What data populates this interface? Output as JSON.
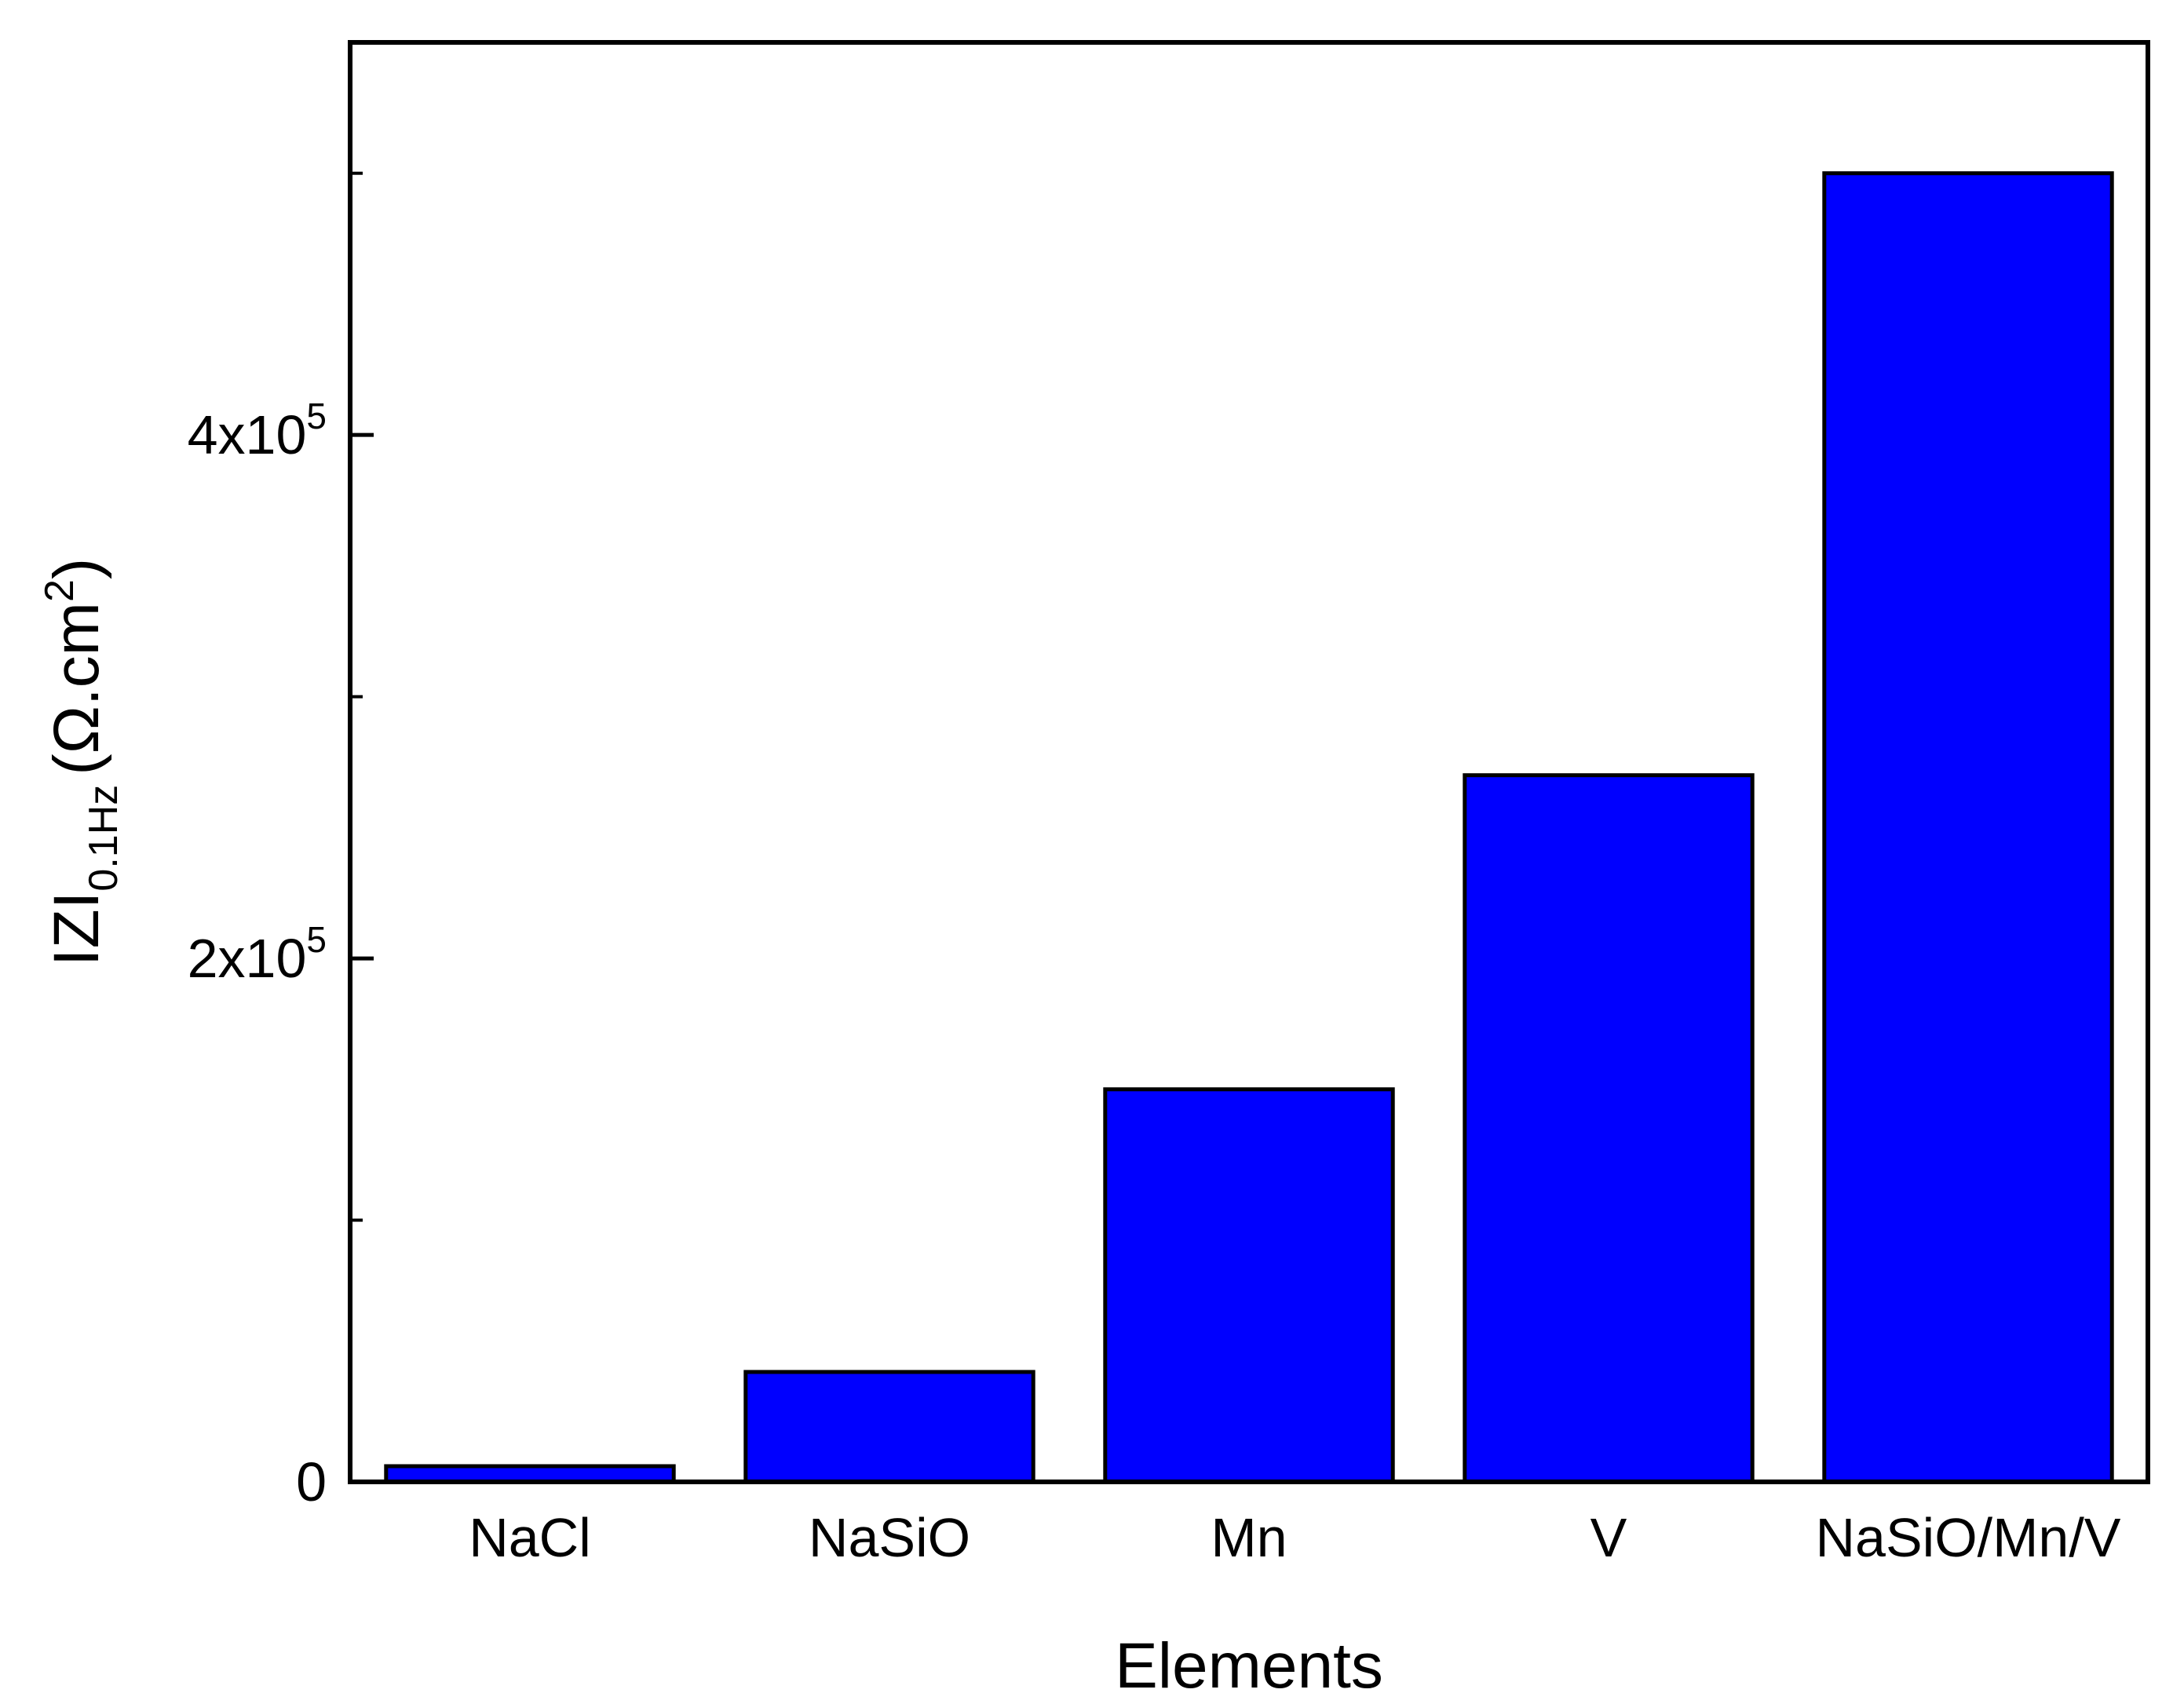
{
  "chart_data": {
    "type": "bar",
    "xlabel": "Elements",
    "ylabel": {
      "main": "IZI",
      "subscript": "0.1Hz",
      "unit": "(Ω.cm",
      "unit_superscript": "2",
      "unit_close": ")"
    },
    "categories": [
      "NaCl",
      "NaSiO",
      "Mn",
      "V",
      "NaSiO/Mn/V"
    ],
    "values": [
      6000,
      42000,
      150000,
      270000,
      500000
    ],
    "ylim": [
      0,
      550000
    ],
    "yticks_major": [
      {
        "value": 0,
        "mantissa": "0",
        "exponent": ""
      },
      {
        "value": 200000,
        "mantissa": "2x10",
        "exponent": "5"
      },
      {
        "value": 400000,
        "mantissa": "4x10",
        "exponent": "5"
      }
    ],
    "yticks_minor": [
      100000,
      300000,
      500000
    ],
    "bar_color": "#0000ff",
    "edge_color": "#000000",
    "grid": false
  }
}
